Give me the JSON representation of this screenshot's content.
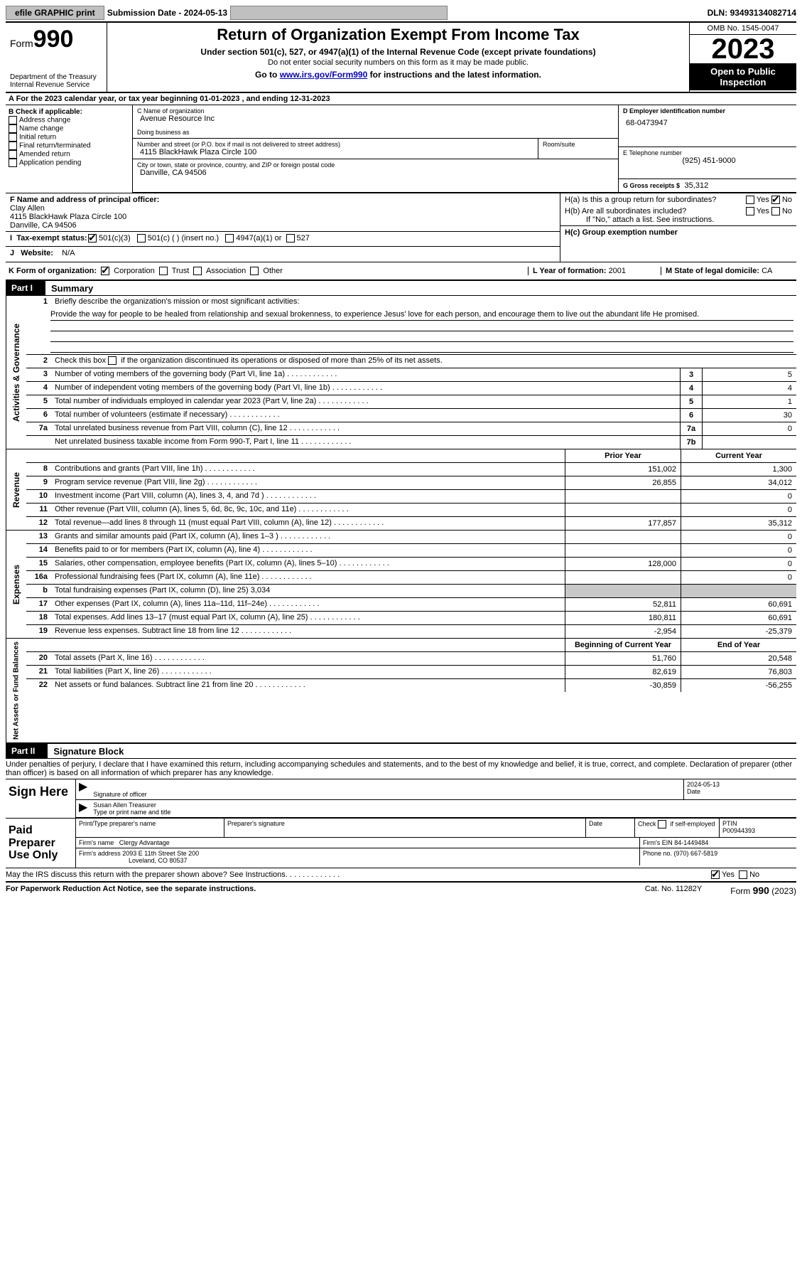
{
  "topbar": {
    "efile": "efile GRAPHIC print",
    "subdate_lbl": "Submission Date - ",
    "subdate": "2024-05-13",
    "dln_lbl": "DLN: ",
    "dln": "93493134082714"
  },
  "header": {
    "form_lbl": "Form",
    "form_num": "990",
    "dept": "Department of the Treasury Internal Revenue Service",
    "title": "Return of Organization Exempt From Income Tax",
    "sub1": "Under section 501(c), 527, or 4947(a)(1) of the Internal Revenue Code (except private foundations)",
    "sub2": "Do not enter social security numbers on this form as it may be made public.",
    "sub3_pre": "Go to ",
    "sub3_link": "www.irs.gov/Form990",
    "sub3_post": " for instructions and the latest information.",
    "omb": "OMB No. 1545-0047",
    "year": "2023",
    "inspect": "Open to Public Inspection"
  },
  "rowA": {
    "text_pre": "A For the 2023 calendar year, or tax year beginning ",
    "begin": "01-01-2023",
    "text_mid": " , and ending ",
    "end": "12-31-2023"
  },
  "boxB": {
    "hdr": "B Check if applicable:",
    "items": [
      "Address change",
      "Name change",
      "Initial return",
      "Final return/terminated",
      "Amended return",
      "Application pending"
    ]
  },
  "boxC": {
    "name_lbl": "C Name of organization",
    "name": "Avenue Resource Inc",
    "dba_lbl": "Doing business as",
    "addr_lbl": "Number and street (or P.O. box if mail is not delivered to street address)",
    "addr": "4115 BlackHawk Plaza Circle 100",
    "room_lbl": "Room/suite",
    "city_lbl": "City or town, state or province, country, and ZIP or foreign postal code",
    "city": "Danville, CA  94506"
  },
  "boxD": {
    "lbl": "D Employer identification number",
    "val": "68-0473947"
  },
  "boxE": {
    "lbl": "E Telephone number",
    "val": "(925) 451-9000"
  },
  "boxG": {
    "lbl": "G Gross receipts $ ",
    "val": "35,312"
  },
  "boxF": {
    "lbl": "F Name and address of principal officer:",
    "name": "Clay Allen",
    "addr1": "4115 BlackHawk Plaza Circle 100",
    "addr2": "Danville, CA  94506"
  },
  "boxH": {
    "a_lbl": "H(a)  Is this a group return for subordinates?",
    "b_lbl": "H(b)  Are all subordinates included?",
    "b_note": "If \"No,\" attach a list. See instructions.",
    "c_lbl": "H(c)  Group exemption number ",
    "yes": "Yes",
    "no": "No",
    "a_no_checked": true
  },
  "boxI": {
    "lbl": "Tax-exempt status:",
    "opts": [
      "501(c)(3)",
      "501(c) (  ) (insert no.)",
      "4947(a)(1) or",
      "527"
    ],
    "checked": 0
  },
  "boxJ": {
    "lbl": "Website: ",
    "val": "N/A"
  },
  "boxK": {
    "lbl": "K Form of organization:",
    "opts": [
      "Corporation",
      "Trust",
      "Association",
      "Other"
    ],
    "checked": 0
  },
  "boxL": {
    "lbl": "L Year of formation: ",
    "val": "2001"
  },
  "boxM": {
    "lbl": "M State of legal domicile: ",
    "val": "CA"
  },
  "part1": {
    "tag": "Part I",
    "title": "Summary"
  },
  "summary": {
    "sections": {
      "gov": "Activities & Governance",
      "rev": "Revenue",
      "exp": "Expenses",
      "net": "Net Assets or Fund Balances"
    },
    "l1_lbl": "Briefly describe the organization's mission or most significant activities:",
    "l1_text": "Provide the way for people to be healed from relationship and sexual brokenness, to experience Jesus' love for each person, and encourage them to live out the abundant life He promised.",
    "l2": "Check this box      if the organization discontinued its operations or disposed of more than 25% of its net assets.",
    "lines_gov": [
      {
        "n": "3",
        "t": "Number of voting members of the governing body (Part VI, line 1a)",
        "box": "3",
        "v": "5"
      },
      {
        "n": "4",
        "t": "Number of independent voting members of the governing body (Part VI, line 1b)",
        "box": "4",
        "v": "4"
      },
      {
        "n": "5",
        "t": "Total number of individuals employed in calendar year 2023 (Part V, line 2a)",
        "box": "5",
        "v": "1"
      },
      {
        "n": "6",
        "t": "Total number of volunteers (estimate if necessary)",
        "box": "6",
        "v": "30"
      },
      {
        "n": "7a",
        "t": "Total unrelated business revenue from Part VIII, column (C), line 12",
        "box": "7a",
        "v": "0"
      },
      {
        "n": "",
        "t": "Net unrelated business taxable income from Form 990-T, Part I, line 11",
        "box": "7b",
        "v": ""
      }
    ],
    "py_hdr": "Prior Year",
    "cy_hdr": "Current Year",
    "lines_rev": [
      {
        "n": "8",
        "t": "Contributions and grants (Part VIII, line 1h)",
        "py": "151,002",
        "cy": "1,300"
      },
      {
        "n": "9",
        "t": "Program service revenue (Part VIII, line 2g)",
        "py": "26,855",
        "cy": "34,012"
      },
      {
        "n": "10",
        "t": "Investment income (Part VIII, column (A), lines 3, 4, and 7d )",
        "py": "",
        "cy": "0"
      },
      {
        "n": "11",
        "t": "Other revenue (Part VIII, column (A), lines 5, 6d, 8c, 9c, 10c, and 11e)",
        "py": "",
        "cy": "0"
      },
      {
        "n": "12",
        "t": "Total revenue—add lines 8 through 11 (must equal Part VIII, column (A), line 12)",
        "py": "177,857",
        "cy": "35,312"
      }
    ],
    "lines_exp": [
      {
        "n": "13",
        "t": "Grants and similar amounts paid (Part IX, column (A), lines 1–3 )",
        "py": "",
        "cy": "0"
      },
      {
        "n": "14",
        "t": "Benefits paid to or for members (Part IX, column (A), line 4)",
        "py": "",
        "cy": "0"
      },
      {
        "n": "15",
        "t": "Salaries, other compensation, employee benefits (Part IX, column (A), lines 5–10)",
        "py": "128,000",
        "cy": "0"
      },
      {
        "n": "16a",
        "t": "Professional fundraising fees (Part IX, column (A), line 11e)",
        "py": "",
        "cy": "0"
      },
      {
        "n": "b",
        "t": "Total fundraising expenses (Part IX, column (D), line 25) 3,034",
        "py": "GREY",
        "cy": "GREY"
      },
      {
        "n": "17",
        "t": "Other expenses (Part IX, column (A), lines 11a–11d, 11f–24e)",
        "py": "52,811",
        "cy": "60,691"
      },
      {
        "n": "18",
        "t": "Total expenses. Add lines 13–17 (must equal Part IX, column (A), line 25)",
        "py": "180,811",
        "cy": "60,691"
      },
      {
        "n": "19",
        "t": "Revenue less expenses. Subtract line 18 from line 12",
        "py": "-2,954",
        "cy": "-25,379"
      }
    ],
    "by_hdr": "Beginning of Current Year",
    "ey_hdr": "End of Year",
    "lines_net": [
      {
        "n": "20",
        "t": "Total assets (Part X, line 16)",
        "py": "51,760",
        "cy": "20,548"
      },
      {
        "n": "21",
        "t": "Total liabilities (Part X, line 26)",
        "py": "82,619",
        "cy": "76,803"
      },
      {
        "n": "22",
        "t": "Net assets or fund balances. Subtract line 21 from line 20",
        "py": "-30,859",
        "cy": "-56,255"
      }
    ]
  },
  "part2": {
    "tag": "Part II",
    "title": "Signature Block"
  },
  "sig": {
    "decl": "Under penalties of perjury, I declare that I have examined this return, including accompanying schedules and statements, and to the best of my knowledge and belief, it is true, correct, and complete. Declaration of preparer (other than officer) is based on all information of which preparer has any knowledge.",
    "sign_here": "Sign Here",
    "sig_officer_lbl": "Signature of officer",
    "sig_date": "2024-05-13",
    "date_lbl": "Date",
    "officer_name": "Susan Allen  Treasurer",
    "type_lbl": "Type or print name and title",
    "paid": "Paid Preparer Use Only",
    "prep_name_lbl": "Print/Type preparer's name",
    "prep_sig_lbl": "Preparer's signature",
    "check_lbl": "Check        if self-employed",
    "ptin_lbl": "PTIN",
    "ptin": "P00944393",
    "firm_name_lbl": "Firm's name   ",
    "firm_name": "Clergy Advantage",
    "firm_ein_lbl": "Firm's EIN  ",
    "firm_ein": "84-1449484",
    "firm_addr_lbl": "Firm's address ",
    "firm_addr1": "2093 E 11th Street Ste 200",
    "firm_addr2": "Loveland, CO  80537",
    "phone_lbl": "Phone no. ",
    "phone": "(970) 667-5819",
    "discuss": "May the IRS discuss this return with the preparer shown above? See Instructions.",
    "discuss_yes_checked": true
  },
  "footer": {
    "left": "For Paperwork Reduction Act Notice, see the separate instructions.",
    "mid": "Cat. No. 11282Y",
    "right_pre": "Form ",
    "right_num": "990",
    "right_post": " (2023)"
  }
}
